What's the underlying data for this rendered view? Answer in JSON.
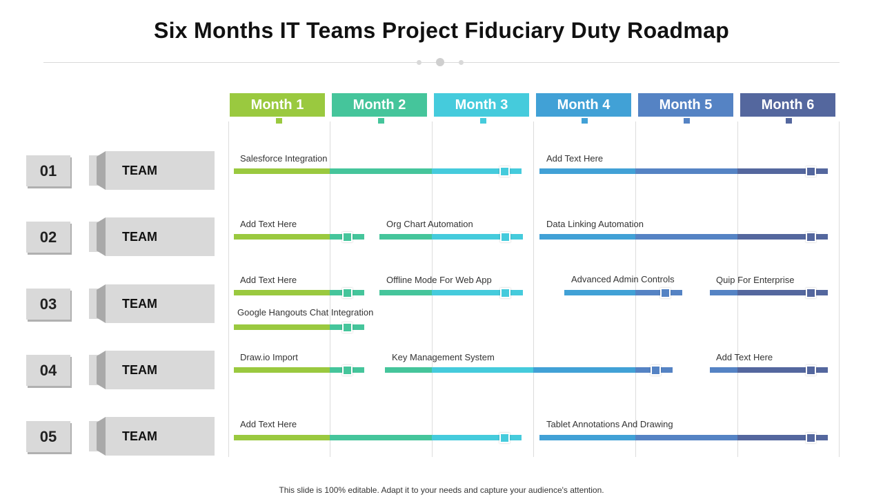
{
  "title": "Six Months IT Teams Project Fiduciary Duty Roadmap",
  "footer": "This slide is 100% editable. Adapt it to your needs and capture your audience's attention.",
  "colors": {
    "m1": "#9ac93f",
    "m2": "#45c59b",
    "m3": "#45cbdc",
    "m4": "#41a1d6",
    "m5": "#5583c4",
    "m6": "#54679e"
  },
  "months": [
    "Month 1",
    "Month 2",
    "Month 3",
    "Month 4",
    "Month 5",
    "Month 6"
  ],
  "rows": [
    {
      "num": "01",
      "team": "TEAM"
    },
    {
      "num": "02",
      "team": "TEAM"
    },
    {
      "num": "03",
      "team": "TEAM"
    },
    {
      "num": "04",
      "team": "TEAM"
    },
    {
      "num": "05",
      "team": "TEAM"
    }
  ],
  "tasks": [
    {
      "label": "Salesforce Integration",
      "row": 1
    },
    {
      "label": "Add Text Here",
      "row": 1
    },
    {
      "label": "Add Text Here",
      "row": 2
    },
    {
      "label": "Org Chart Automation",
      "row": 2
    },
    {
      "label": "Data Linking Automation",
      "row": 2
    },
    {
      "label": "Add Text Here",
      "row": 3
    },
    {
      "label": "Offline Mode For Web App",
      "row": 3
    },
    {
      "label": "Advanced Admin Controls",
      "row": 3
    },
    {
      "label": "Quip For Enterprise",
      "row": 3
    },
    {
      "label": "Google Hangouts Chat Integration",
      "row": 3
    },
    {
      "label": "Draw.io Import",
      "row": 4
    },
    {
      "label": "Key Management System",
      "row": 4
    },
    {
      "label": "Add Text Here",
      "row": 4
    },
    {
      "label": "Add Text Here",
      "row": 5
    },
    {
      "label": "Tablet Annotations And Drawing",
      "row": 5
    }
  ]
}
